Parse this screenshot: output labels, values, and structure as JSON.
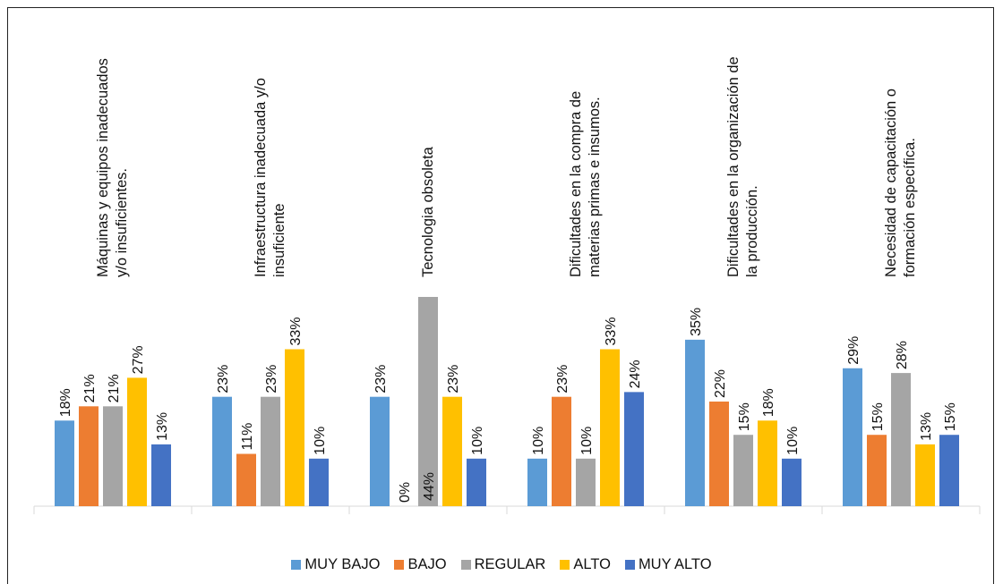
{
  "chart_data": {
    "type": "bar",
    "categories": [
      "Máquinas y equipos inadecuados y/o insuficientes.",
      "Infraestructura inadecuada y/o insuficiente",
      "Tecnologia obsoleta",
      "Dificultades en la compra de materias primas e insumos.",
      "Dificultades en la organización de la producción.",
      "Necesidad de capacitación o formación específica."
    ],
    "series": [
      {
        "name": "MUY BAJO",
        "color": "#5b9bd5",
        "values": [
          18,
          23,
          23,
          10,
          35,
          29
        ],
        "value_labels": [
          "18%",
          "23%",
          "23%",
          "10%",
          "35%",
          "29%"
        ]
      },
      {
        "name": "BAJO",
        "color": "#ed7d31",
        "values": [
          21,
          11,
          0,
          23,
          22,
          15
        ],
        "value_labels": [
          "21%",
          "11%",
          "0%",
          "23%",
          "22%",
          "15%"
        ]
      },
      {
        "name": "REGULAR",
        "color": "#a5a5a5",
        "values": [
          21,
          23,
          44,
          10,
          15,
          28
        ],
        "value_labels": [
          "21%",
          "23%",
          "44%",
          "10%",
          "15%",
          "28%"
        ]
      },
      {
        "name": "ALTO",
        "color": "#ffc000",
        "values": [
          27,
          33,
          23,
          33,
          18,
          13
        ],
        "value_labels": [
          "27%",
          "33%",
          "23%",
          "33%",
          "18%",
          "13%"
        ]
      },
      {
        "name": "MUY ALTO",
        "color": "#4472c4",
        "values": [
          13,
          10,
          10,
          24,
          10,
          15
        ],
        "value_labels": [
          "13%",
          "10%",
          "10%",
          "24%",
          "10%",
          "15%"
        ]
      }
    ],
    "legend": "bottom"
  }
}
